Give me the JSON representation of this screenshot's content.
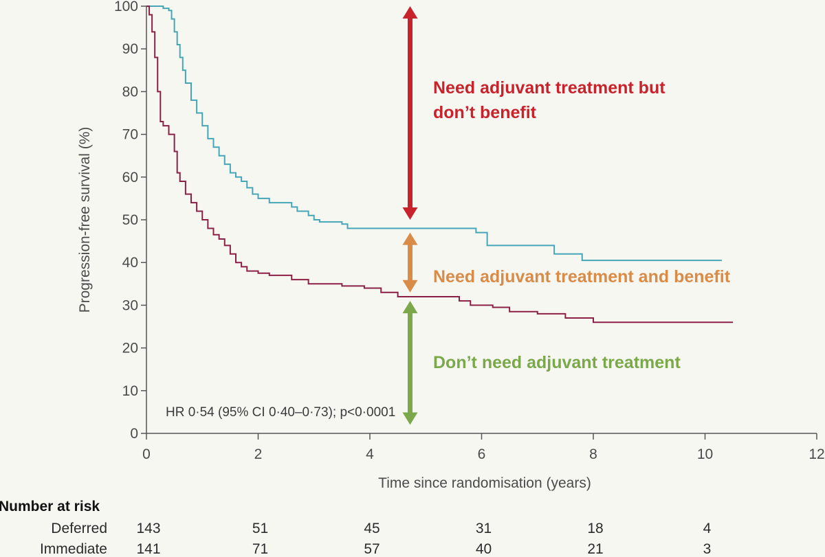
{
  "chart_data": {
    "type": "line",
    "ylabel": "Progression-free survival (%)",
    "xlabel": "Time since randomisation (years)",
    "xlim": [
      0,
      12
    ],
    "ylim": [
      0,
      100
    ],
    "xticks": [
      0,
      2,
      4,
      6,
      8,
      10,
      12
    ],
    "yticks": [
      0,
      10,
      20,
      30,
      40,
      50,
      60,
      70,
      80,
      90,
      100
    ],
    "grid": false,
    "series": [
      {
        "color": "#45a6b8",
        "x": [
          0,
          0.2,
          0.3,
          0.4,
          0.45,
          0.5,
          0.55,
          0.6,
          0.65,
          0.7,
          0.8,
          0.9,
          1.0,
          1.1,
          1.2,
          1.3,
          1.4,
          1.5,
          1.6,
          1.7,
          1.8,
          1.9,
          2.0,
          2.2,
          2.6,
          2.7,
          2.9,
          3.0,
          3.1,
          3.5,
          3.6,
          4.5,
          5.5,
          5.9,
          6.0,
          6.1,
          7.0,
          7.3,
          7.5,
          7.8,
          10.3
        ],
        "values": [
          100,
          100,
          99.5,
          99,
          97,
          94,
          91,
          88,
          85,
          82,
          78,
          75,
          72,
          69,
          67,
          65,
          63,
          61,
          60,
          59,
          57.5,
          56,
          55,
          54,
          53,
          52,
          51,
          50,
          49.5,
          49,
          48,
          48,
          48,
          47,
          47,
          44,
          44,
          42,
          42,
          40.5,
          40.5
        ]
      },
      {
        "color": "#8b2046",
        "x": [
          0,
          0.05,
          0.1,
          0.15,
          0.2,
          0.25,
          0.3,
          0.4,
          0.5,
          0.55,
          0.6,
          0.7,
          0.8,
          0.9,
          1.0,
          1.1,
          1.2,
          1.3,
          1.4,
          1.5,
          1.6,
          1.7,
          1.8,
          2.0,
          2.2,
          2.6,
          2.9,
          3.0,
          3.5,
          3.9,
          4.2,
          4.5,
          5.2,
          5.6,
          5.8,
          6.2,
          6.5,
          7.0,
          7.5,
          8.0,
          10.5
        ],
        "values": [
          100,
          98,
          94,
          88,
          80,
          73,
          72,
          70,
          66,
          61,
          59,
          56,
          54,
          52,
          50,
          48,
          46.5,
          45.5,
          44,
          42,
          40,
          39,
          38,
          37.5,
          37,
          36,
          35,
          35,
          34.5,
          34,
          33,
          32,
          32,
          31,
          30,
          29.5,
          28.5,
          28,
          27,
          26,
          26
        ]
      }
    ],
    "annotations": [
      {
        "text_lines": [
          "Need adjuvant treatment but",
          "don’t benefit"
        ],
        "color": "#c8232c",
        "arrow_x": 4.72,
        "arrow_y": [
          100,
          50
        ]
      },
      {
        "text_lines": [
          "Need adjuvant treatment and benefit"
        ],
        "color": "#d98b48",
        "arrow_x": 4.72,
        "arrow_y": [
          47,
          33
        ]
      },
      {
        "text_lines": [
          "Don’t need adjuvant treatment"
        ],
        "color": "#7aa84a",
        "arrow_x": 4.72,
        "arrow_y": [
          31,
          2
        ]
      }
    ],
    "stat_text": "HR 0·54 (95% CI 0·40–0·73); p<0·0001",
    "risk_table": {
      "header": "Number at risk",
      "times": [
        0,
        2,
        4,
        6,
        8,
        10
      ],
      "rows": [
        {
          "label": "Deferred",
          "values": [
            "143",
            "51",
            "45",
            "31",
            "18",
            "4"
          ]
        },
        {
          "label": "Immediate",
          "values": [
            "141",
            "71",
            "57",
            "40",
            "21",
            "3"
          ]
        }
      ]
    }
  }
}
